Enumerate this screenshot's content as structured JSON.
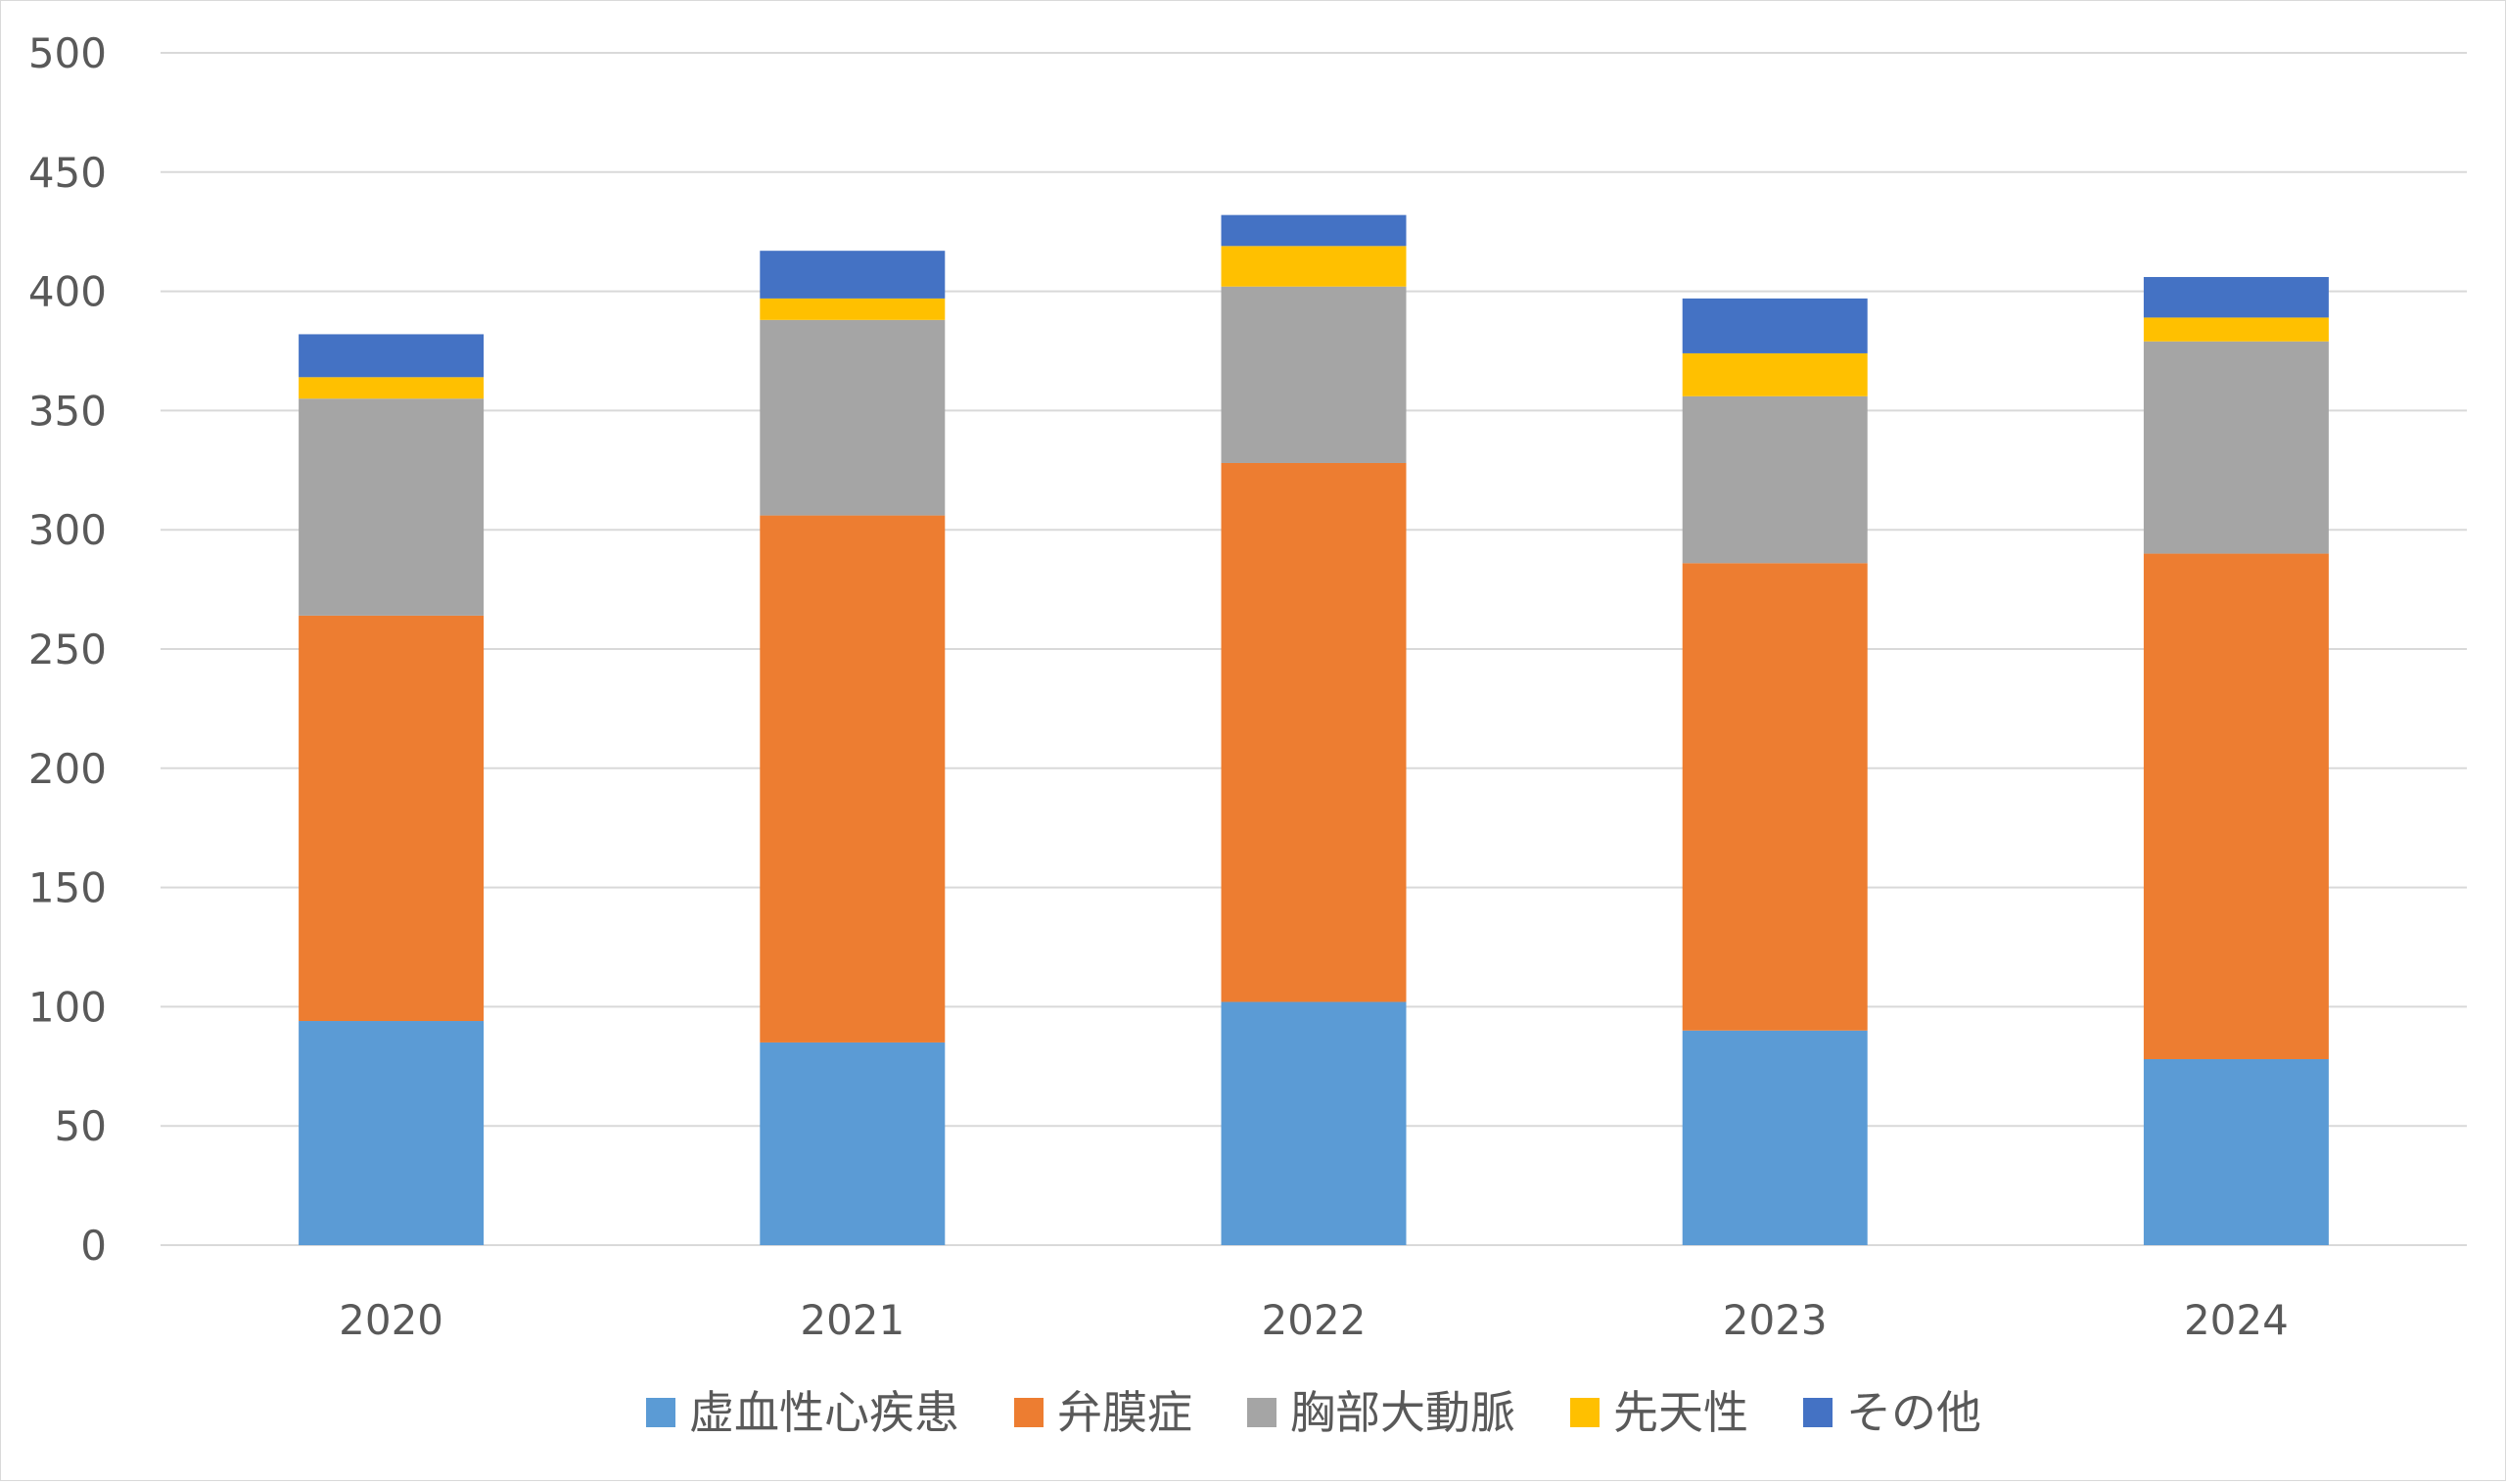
{
  "chart_data": {
    "type": "bar",
    "stacked": true,
    "categories": [
      "2020",
      "2021",
      "2022",
      "2023",
      "2024"
    ],
    "series": [
      {
        "name": "虚血性心疾患",
        "color": "#5B9BD5",
        "values": [
          94,
          85,
          102,
          90,
          78
        ]
      },
      {
        "name": "弁膜症",
        "color": "#ED7D31",
        "values": [
          170,
          221,
          226,
          196,
          212
        ]
      },
      {
        "name": "胸部大動脈",
        "color": "#A5A5A5",
        "values": [
          91,
          82,
          74,
          70,
          89
        ]
      },
      {
        "name": "先天性",
        "color": "#FFC000",
        "values": [
          9,
          9,
          17,
          18,
          10
        ]
      },
      {
        "name": "その他",
        "color": "#4472C4",
        "values": [
          18,
          20,
          13,
          23,
          17
        ]
      }
    ],
    "title": "",
    "xlabel": "",
    "ylabel": "",
    "ylim": [
      0,
      500
    ],
    "yticks": [
      "0",
      "50",
      "100",
      "150",
      "200",
      "250",
      "300",
      "350",
      "400",
      "450",
      "500"
    ],
    "grid": true,
    "legend_position": "bottom",
    "colors": {
      "gridline": "#d9d9d9",
      "axis_text": "#595959"
    }
  }
}
